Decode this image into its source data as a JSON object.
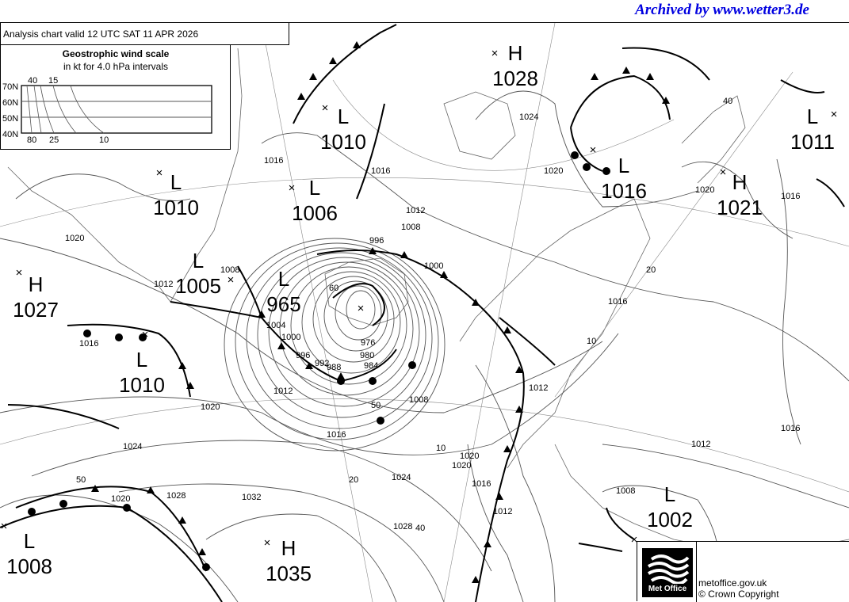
{
  "archive_banner": "Archived by www.wetter3.de",
  "title": "Analysis chart  valid 12 UTC SAT 11  APR 2026",
  "wind_scale": {
    "title": "Geostrophic wind scale",
    "subtitle": "in kt for 4.0 hPa intervals",
    "latitudes": [
      "70N",
      "60N",
      "50N",
      "40N"
    ],
    "top_labels": [
      "40",
      "15"
    ],
    "bottom_labels": [
      "80",
      "25",
      "10"
    ]
  },
  "pressure_centers": [
    {
      "type": "H",
      "value": "1028"
    },
    {
      "type": "L",
      "value": "1010"
    },
    {
      "type": "L",
      "value": "1011"
    },
    {
      "type": "L",
      "value": "1016"
    },
    {
      "type": "H",
      "value": "1021"
    },
    {
      "type": "L",
      "value": "1010"
    },
    {
      "type": "L",
      "value": "1006"
    },
    {
      "type": "H",
      "value": "1027"
    },
    {
      "type": "L",
      "value": "1005"
    },
    {
      "type": "L",
      "value": "965"
    },
    {
      "type": "L",
      "value": "1010"
    },
    {
      "type": "L",
      "value": "1002"
    },
    {
      "type": "L",
      "value": "1008"
    },
    {
      "type": "H",
      "value": "1035"
    }
  ],
  "isobar_labels": [
    "1016",
    "1016",
    "1012",
    "1008",
    "996",
    "1000",
    "1024",
    "1020",
    "1020",
    "1016",
    "40",
    "20",
    "10",
    "1016",
    "1012",
    "1016",
    "1008",
    "1012",
    "1008",
    "1012",
    "1020",
    "1016",
    "1024",
    "1024",
    "1028",
    "1032",
    "1028",
    "1020",
    "50",
    "40",
    "20",
    "10",
    "1020",
    "1016",
    "1012",
    "50",
    "1020",
    "1012",
    "1008",
    "1004",
    "1000",
    "996",
    "992",
    "988",
    "984",
    "980",
    "976",
    "60",
    "1016",
    "1020"
  ],
  "footer": {
    "logo_text": "Met Office",
    "website": "metoffice.gov.uk",
    "copyright": "© Crown Copyright"
  },
  "colors": {
    "banner": "#0000e0",
    "lines": "#000000",
    "isobars": "#555555"
  }
}
